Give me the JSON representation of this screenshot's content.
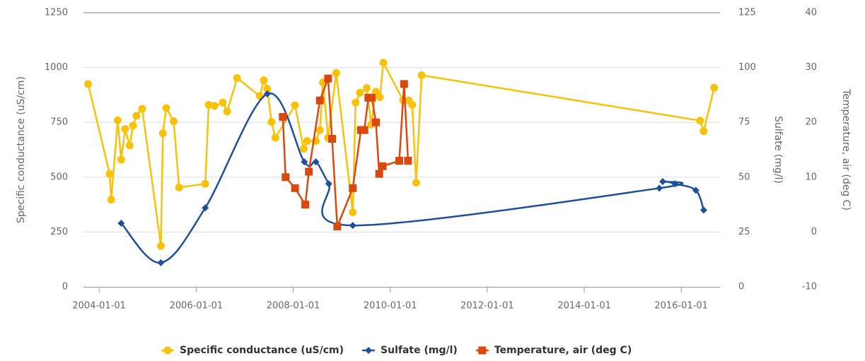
{
  "chart_data": {
    "type": "line",
    "xlim": [
      "2003-09-05",
      "2016-10-19"
    ],
    "xticks": [
      "2004-01-01",
      "2006-01-01",
      "2008-01-01",
      "2010-01-01",
      "2012-01-01",
      "2014-01-01",
      "2016-01-01"
    ],
    "ylim": [
      0,
      1250
    ],
    "yticks": [
      0,
      250,
      500,
      750,
      1000,
      1250
    ],
    "y2lim": [
      0,
      125
    ],
    "y2ticks": [
      0,
      25,
      50,
      75,
      100,
      125
    ],
    "y3lim": [
      -10,
      40
    ],
    "y3ticks": [
      -10,
      0,
      10,
      20,
      30,
      40
    ],
    "ylabel": "Specific conductance (uS/cm)",
    "y2label": "Sulfate (mg/l)",
    "y3label": "Temperature, air (deg C)",
    "grid": true,
    "legend": "bottom",
    "series": [
      {
        "name": "Specific conductance (uS/cm)",
        "color": "#f8c20a",
        "marker": "circle",
        "axis": "y",
        "x": [
          "2003-10-10",
          "2004-03-20",
          "2004-04-01",
          "2004-05-20",
          "2004-06-15",
          "2004-07-15",
          "2004-08-18",
          "2004-09-12",
          "2004-10-08",
          "2004-11-20",
          "2005-04-10",
          "2005-04-25",
          "2005-05-20",
          "2005-07-15",
          "2005-08-25",
          "2006-03-10",
          "2006-04-05",
          "2006-05-18",
          "2006-07-20",
          "2006-08-22",
          "2006-11-05",
          "2007-04-25",
          "2007-05-25",
          "2007-06-20",
          "2007-07-22",
          "2007-08-20",
          "2008-01-15",
          "2008-03-20",
          "2008-04-15",
          "2008-06-20",
          "2008-07-20",
          "2008-08-12",
          "2008-09-20",
          "2008-11-20",
          "2009-03-25",
          "2009-04-15",
          "2009-05-18",
          "2009-07-08",
          "2009-08-10",
          "2009-09-15",
          "2009-10-15",
          "2009-11-10",
          "2010-04-08",
          "2010-05-20",
          "2010-06-15",
          "2010-07-15",
          "2010-08-25",
          "2016-05-22",
          "2016-06-18",
          "2016-09-05"
        ],
        "values": [
          925,
          515,
          397,
          760,
          580,
          720,
          645,
          735,
          780,
          812,
          187,
          700,
          815,
          755,
          453,
          470,
          830,
          825,
          840,
          800,
          952,
          870,
          942,
          903,
          752,
          680,
          828,
          630,
          665,
          665,
          715,
          932,
          680,
          975,
          340,
          840,
          885,
          907,
          740,
          890,
          865,
          1022,
          850,
          850,
          830,
          475,
          965,
          758,
          710,
          908
        ]
      },
      {
        "name": "Sulfate (mg/l)",
        "color": "#1c4f9c",
        "marker": "diamond",
        "axis": "y2",
        "smooth": true,
        "x": [
          "2004-06-15",
          "2005-04-10",
          "2006-03-10",
          "2007-06-20",
          "2008-03-25",
          "2008-06-20",
          "2008-09-25",
          "2009-03-25",
          "2015-07-20",
          "2015-08-15",
          "2015-11-15",
          "2016-04-20",
          "2016-06-18"
        ],
        "values": [
          29,
          11,
          36,
          88,
          57,
          57,
          47,
          28,
          45,
          48,
          47,
          44,
          35
        ]
      },
      {
        "name": "Temperature, air (deg C)",
        "color": "#d9480f",
        "marker": "square",
        "axis": "y3",
        "x": [
          "2007-10-15",
          "2007-11-05",
          "2008-01-15",
          "2008-04-01",
          "2008-04-28",
          "2008-07-20",
          "2008-09-20",
          "2008-10-20",
          "2008-11-28",
          "2009-03-25",
          "2009-05-25",
          "2009-06-20",
          "2009-07-20",
          "2009-08-15",
          "2009-09-15",
          "2009-10-10",
          "2009-11-05",
          "2010-03-10",
          "2010-04-15",
          "2010-05-15"
        ],
        "values": [
          21,
          10,
          8,
          5,
          11,
          24,
          28,
          17,
          1,
          8,
          18.6,
          18.6,
          24.5,
          24.5,
          20,
          10.6,
          12,
          13,
          27,
          13
        ]
      }
    ]
  }
}
